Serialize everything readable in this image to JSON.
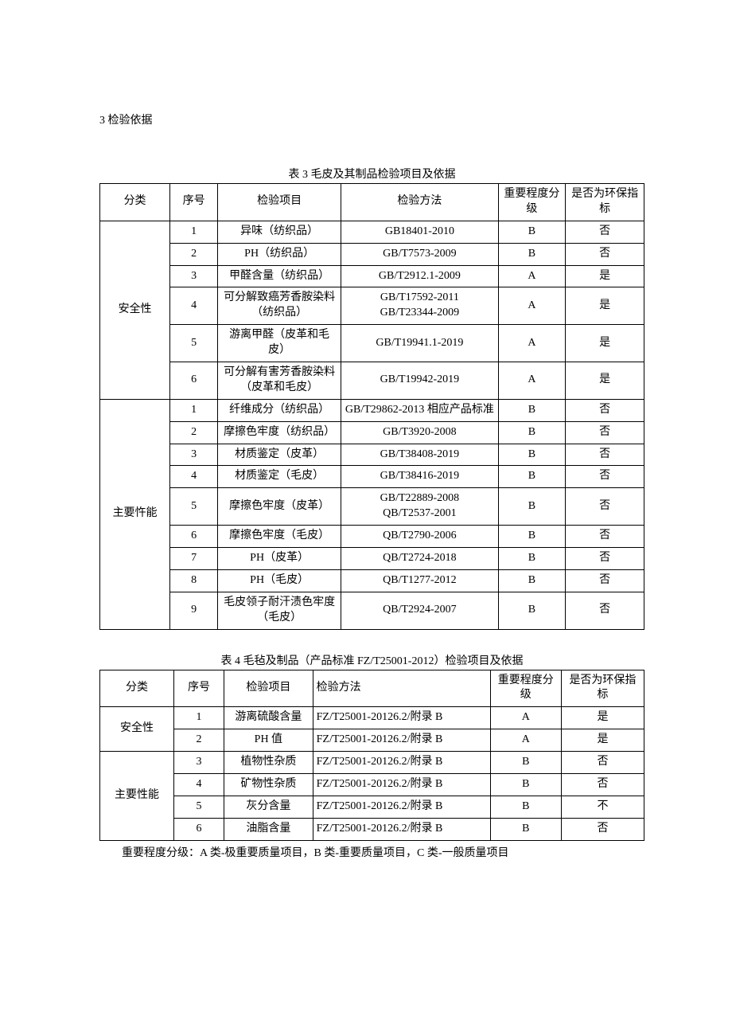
{
  "section_heading": "3 检验依据",
  "table3": {
    "title": "表 3 毛皮及其制品检验项目及依据",
    "headers": {
      "category": "分类",
      "seq": "序号",
      "item": "检验项目",
      "method": "检验方法",
      "level": "重要程度分级",
      "env": "是否为环保指标"
    },
    "groups": [
      {
        "category": "安全性",
        "rows": [
          {
            "seq": "1",
            "item": "异味（纺织品）",
            "method": "GB18401-2010",
            "level": "B",
            "env": "否"
          },
          {
            "seq": "2",
            "item": "PH（纺织品）",
            "method": "GB/T7573-2009",
            "level": "B",
            "env": "否"
          },
          {
            "seq": "3",
            "item": "甲醛含量（纺织品）",
            "method": "GB/T2912.1-2009",
            "level": "A",
            "env": "是"
          },
          {
            "seq": "4",
            "item": "可分解致癌芳香胺染料（纺织品）",
            "method": "GB/T17592-2011\nGB/T23344-2009",
            "level": "A",
            "env": "是"
          },
          {
            "seq": "5",
            "item": "游离甲醛（皮革和毛皮）",
            "method": "GB/T19941.1-2019",
            "level": "A",
            "env": "是"
          },
          {
            "seq": "6",
            "item": "可分解有害芳香胺染料（皮革和毛皮）",
            "method": "GB/T19942-2019",
            "level": "A",
            "env": "是"
          }
        ]
      },
      {
        "category": "主要忤能",
        "rows": [
          {
            "seq": "1",
            "item": "纤维成分（纺织品）",
            "method": "GB/T29862-2013 相应产品标准",
            "level": "B",
            "env": "否"
          },
          {
            "seq": "2",
            "item": "摩擦色牢度（纺织品）",
            "method": "GB/T3920-2008",
            "level": "B",
            "env": "否"
          },
          {
            "seq": "3",
            "item": "材质鉴定（皮革）",
            "method": "GB/T38408-2019",
            "level": "B",
            "env": "否"
          },
          {
            "seq": "4",
            "item": "材质鉴定（毛皮）",
            "method": "GB/T38416-2019",
            "level": "B",
            "env": "否"
          },
          {
            "seq": "5",
            "item": "摩擦色牢度（皮革）",
            "method": "GB/T22889-2008\nQB/T2537-2001",
            "level": "B",
            "env": "否"
          },
          {
            "seq": "6",
            "item": "摩擦色牢度（毛皮）",
            "method": "QB/T2790-2006",
            "level": "B",
            "env": "否"
          },
          {
            "seq": "7",
            "item": "PH（皮革）",
            "method": "QB/T2724-2018",
            "level": "B",
            "env": "否"
          },
          {
            "seq": "8",
            "item": "PH（毛皮）",
            "method": "QB/T1277-2012",
            "level": "B",
            "env": "否"
          },
          {
            "seq": "9",
            "item": "毛皮领子耐汗渍色牢度（毛皮）",
            "method": "QB/T2924-2007",
            "level": "B",
            "env": "否"
          }
        ]
      }
    ]
  },
  "table4": {
    "title": "表 4 毛毡及制品（产品标准 FZ/T25001-2012）检验项目及依据",
    "headers": {
      "category": "分类",
      "seq": "序号",
      "item": "检验项目",
      "method": "检验方法",
      "level": "重要程度分级",
      "env": "是否为环保指标"
    },
    "groups": [
      {
        "category": "安全性",
        "rows": [
          {
            "seq": "1",
            "item": "游离硫酸含量",
            "method": "FZ/T25001-20126.2/附录 B",
            "level": "A",
            "env": "是"
          },
          {
            "seq": "2",
            "item": "PH 值",
            "method": "FZ/T25001-20126.2/附录 B",
            "level": "A",
            "env": "是"
          }
        ]
      },
      {
        "category": "主要性能",
        "rows": [
          {
            "seq": "3",
            "item": "植物性杂质",
            "method": "FZ/T25001-20126.2/附录 B",
            "level": "B",
            "env": "否"
          },
          {
            "seq": "4",
            "item": "矿物性杂质",
            "method": "FZ/T25001-20126.2/附录 B",
            "level": "B",
            "env": "否"
          },
          {
            "seq": "5",
            "item": "灰分含量",
            "method": "FZ/T25001-20126.2/附录 B",
            "level": "B",
            "env": "不"
          },
          {
            "seq": "6",
            "item": "油脂含量",
            "method": "FZ/T25001-20126.2/附录 B",
            "level": "B",
            "env": "否"
          }
        ]
      }
    ]
  },
  "footnote": "重要程度分级：A 类-极重要质量项目，B 类-重要质量项目，C 类-一般质量项目"
}
